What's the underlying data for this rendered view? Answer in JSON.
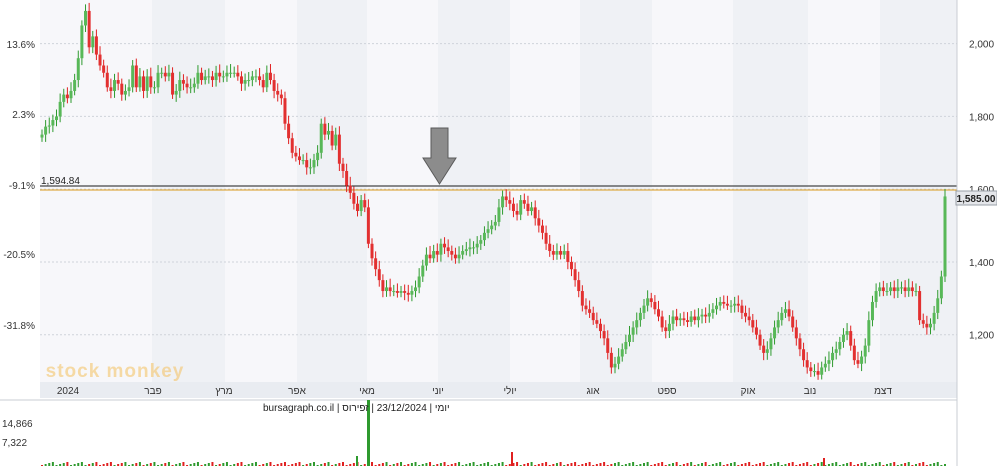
{
  "chart_data": [
    {
      "type": "candlestick",
      "title": "",
      "x_ticks": [
        "2024",
        "פבר",
        "מרץ",
        "אפר",
        "מאי",
        "יוני",
        "יולי",
        "אוג",
        "ספט",
        "אוק",
        "נוב",
        "דצמ"
      ],
      "y_right_ticks": [
        "2,000",
        "1,800",
        "1,600",
        "1,400",
        "1,200"
      ],
      "y_left_ticks": [
        "13.6%",
        "2.3%",
        "-9.1%",
        "-20.5%",
        "-31.8%"
      ],
      "ylim": [
        1070,
        2120
      ],
      "grid": true,
      "series": [
        {
          "name": "",
          "close": [
            1750,
            1772,
            1775,
            1790,
            1800,
            1840,
            1860,
            1850,
            1870,
            1900,
            1960,
            2050,
            2090,
            1990,
            2020,
            1970,
            1940,
            1920,
            1880,
            1870,
            1900,
            1890,
            1860,
            1870,
            1880,
            1940,
            1880,
            1910,
            1870,
            1910,
            1880,
            1880,
            1920,
            1920,
            1910,
            1920,
            1860,
            1870,
            1900,
            1890,
            1880,
            1880,
            1890,
            1920,
            1900,
            1910,
            1910,
            1900,
            1920,
            1910,
            1910,
            1920,
            1920,
            1920,
            1910,
            1890,
            1900,
            1900,
            1910,
            1910,
            1900,
            1880,
            1920,
            1900,
            1870,
            1860,
            1850,
            1780,
            1740,
            1700,
            1690,
            1680,
            1680,
            1660,
            1660,
            1680,
            1700,
            1780,
            1750,
            1760,
            1720,
            1750,
            1670,
            1650,
            1610,
            1590,
            1560,
            1540,
            1570,
            1550,
            1450,
            1410,
            1380,
            1350,
            1320,
            1330,
            1320,
            1320,
            1315,
            1320,
            1315,
            1310,
            1320,
            1330,
            1360,
            1390,
            1420,
            1410,
            1430,
            1420,
            1450,
            1440,
            1430,
            1420,
            1410,
            1420,
            1430,
            1435,
            1440,
            1440,
            1450,
            1460,
            1480,
            1490,
            1500,
            1510,
            1550,
            1580,
            1570,
            1560,
            1540,
            1530,
            1570,
            1560,
            1540,
            1550,
            1520,
            1500,
            1480,
            1450,
            1430,
            1420,
            1430,
            1420,
            1430,
            1400,
            1380,
            1350,
            1320,
            1280,
            1270,
            1260,
            1240,
            1230,
            1210,
            1190,
            1150,
            1110,
            1120,
            1140,
            1160,
            1180,
            1200,
            1220,
            1240,
            1260,
            1280,
            1300,
            1290,
            1270,
            1250,
            1220,
            1210,
            1230,
            1250,
            1240,
            1245,
            1240,
            1235,
            1250,
            1240,
            1250,
            1255,
            1250,
            1260,
            1270,
            1280,
            1290,
            1285,
            1280,
            1280,
            1285,
            1280,
            1260,
            1250,
            1240,
            1220,
            1200,
            1170,
            1150,
            1160,
            1190,
            1220,
            1240,
            1260,
            1270,
            1250,
            1220,
            1190,
            1160,
            1130,
            1110,
            1100,
            1100,
            1090,
            1110,
            1120,
            1130,
            1150,
            1160,
            1180,
            1200,
            1210,
            1170,
            1130,
            1120,
            1140,
            1170,
            1240,
            1290,
            1320,
            1330,
            1320,
            1320,
            1330,
            1320,
            1330,
            1330,
            1320,
            1330,
            1320,
            1320,
            1240,
            1230,
            1220,
            1230,
            1260,
            1300,
            1360,
            1580
          ]
        }
      ],
      "volume_ticks": [
        "14,866",
        "7,322"
      ],
      "price_line_label": "1,594.84",
      "current_price_label": "1,585.00",
      "source_text": "יומי | 23/12/2024 | זפירוס | bursagraph.co.il",
      "watermark": "stock monkey"
    }
  ]
}
